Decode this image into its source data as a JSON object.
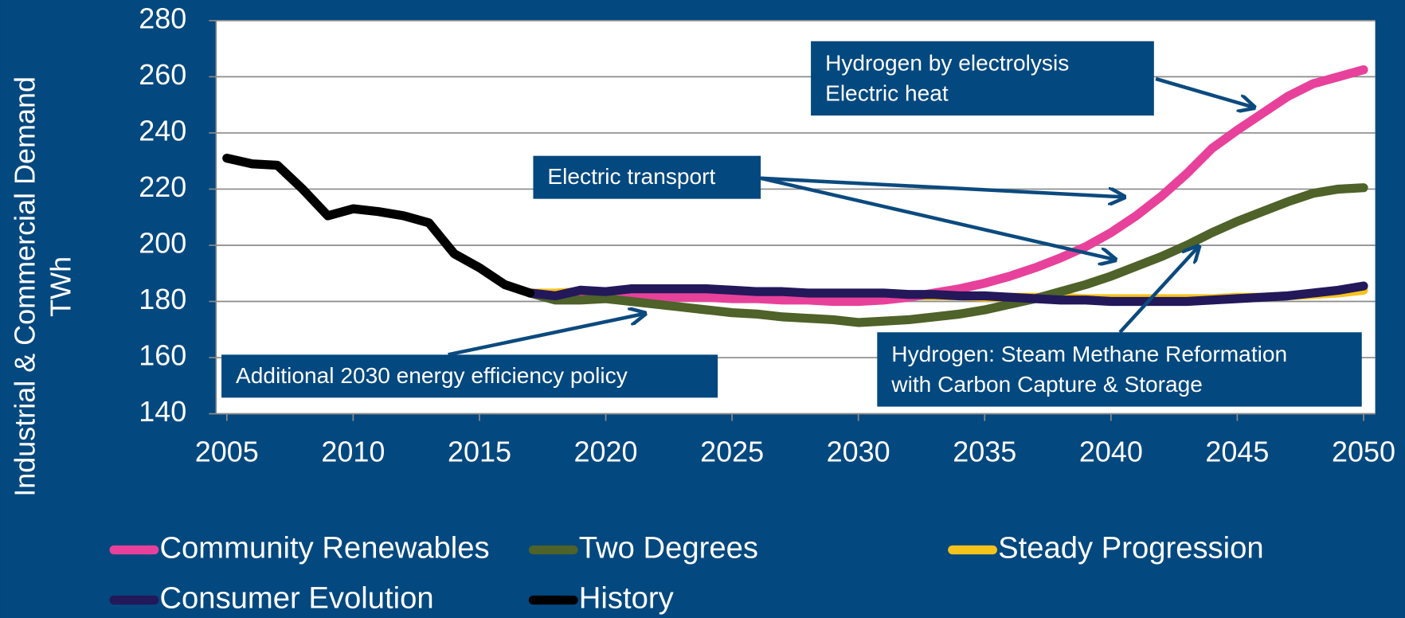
{
  "chart_data": {
    "type": "line",
    "y_label": [
      "Industrial & Commercial Demand",
      "TWh"
    ],
    "x": [
      2005,
      2006,
      2007,
      2008,
      2009,
      2010,
      2011,
      2012,
      2013,
      2014,
      2015,
      2016,
      2017,
      2018,
      2019,
      2020,
      2021,
      2022,
      2023,
      2024,
      2025,
      2026,
      2027,
      2028,
      2029,
      2030,
      2031,
      2032,
      2033,
      2034,
      2035,
      2036,
      2037,
      2038,
      2039,
      2040,
      2041,
      2042,
      2043,
      2044,
      2045,
      2046,
      2047,
      2048,
      2049,
      2050
    ],
    "xlim": [
      2005,
      2050
    ],
    "xticks": [
      2005,
      2010,
      2015,
      2020,
      2025,
      2030,
      2035,
      2040,
      2045,
      2050
    ],
    "ylim": [
      140,
      280
    ],
    "yticks": [
      140,
      160,
      180,
      200,
      220,
      240,
      260,
      280
    ],
    "grid": true,
    "series": [
      {
        "name": "Community Renewables",
        "color": "#e8419b",
        "values": [
          null,
          null,
          null,
          null,
          null,
          null,
          null,
          null,
          null,
          null,
          null,
          null,
          183,
          182,
          181.5,
          181.5,
          182,
          182,
          181.5,
          181.5,
          181,
          181,
          180.5,
          180.5,
          180,
          180,
          180.5,
          181.5,
          183,
          184.5,
          186.5,
          189,
          192,
          195.5,
          199.5,
          204.5,
          210.5,
          217.5,
          225.5,
          234.5,
          241,
          247,
          253,
          257.5,
          260,
          262.5
        ]
      },
      {
        "name": "Two Degrees",
        "color": "#4e6229",
        "values": [
          null,
          null,
          null,
          null,
          null,
          null,
          null,
          null,
          null,
          null,
          null,
          null,
          183,
          180.5,
          180.5,
          181,
          180,
          179,
          178,
          177,
          176,
          175.5,
          174.5,
          174,
          173.5,
          172.5,
          173,
          173.5,
          174.5,
          175.5,
          177,
          179,
          181,
          183.5,
          186,
          189,
          192.5,
          196,
          200,
          204.5,
          208.5,
          212,
          215.5,
          218.5,
          220,
          220.5
        ]
      },
      {
        "name": "Steady Progression",
        "color": "#f6c21c",
        "values": [
          null,
          null,
          null,
          null,
          null,
          null,
          null,
          null,
          null,
          null,
          null,
          null,
          183,
          183,
          183.5,
          183.5,
          183.5,
          183.5,
          183.5,
          183.5,
          183,
          183,
          183,
          182.5,
          182.5,
          182.5,
          182.5,
          182,
          182,
          182,
          181.5,
          181.5,
          181.5,
          181.5,
          181,
          181,
          181,
          181,
          181,
          181,
          181.5,
          181.5,
          182,
          182.5,
          183,
          184
        ]
      },
      {
        "name": "Consumer Evolution",
        "color": "#22185a",
        "values": [
          null,
          null,
          null,
          null,
          null,
          null,
          null,
          null,
          null,
          null,
          null,
          null,
          183,
          182,
          184,
          183.5,
          184.5,
          184.5,
          184.5,
          184.5,
          184,
          183.5,
          183.5,
          183,
          183,
          183,
          183,
          182.5,
          182.5,
          182,
          182,
          181.5,
          181,
          180.5,
          180.5,
          180,
          180,
          180,
          180,
          180.5,
          181,
          181.5,
          182,
          183,
          184,
          185.5
        ]
      },
      {
        "name": "History",
        "color": "#000000",
        "values": [
          231,
          229,
          228.5,
          220,
          210.5,
          213,
          212,
          210.5,
          208,
          197,
          192,
          186,
          183,
          null,
          null,
          null,
          null,
          null,
          null,
          null,
          null,
          null,
          null,
          null,
          null,
          null,
          null,
          null,
          null,
          null,
          null,
          null,
          null,
          null,
          null,
          null,
          null,
          null,
          null,
          null,
          null,
          null,
          null,
          null,
          null,
          null
        ]
      }
    ],
    "annotations": [
      {
        "lines": [
          "Hydrogen by electrolysis",
          "Electric heat"
        ]
      },
      {
        "lines": [
          "Electric transport"
        ]
      },
      {
        "lines": [
          "Additional 2030 energy efficiency policy"
        ]
      },
      {
        "lines": [
          "Hydrogen: Steam Methane Reformation",
          "with Carbon Capture & Storage"
        ]
      }
    ]
  }
}
